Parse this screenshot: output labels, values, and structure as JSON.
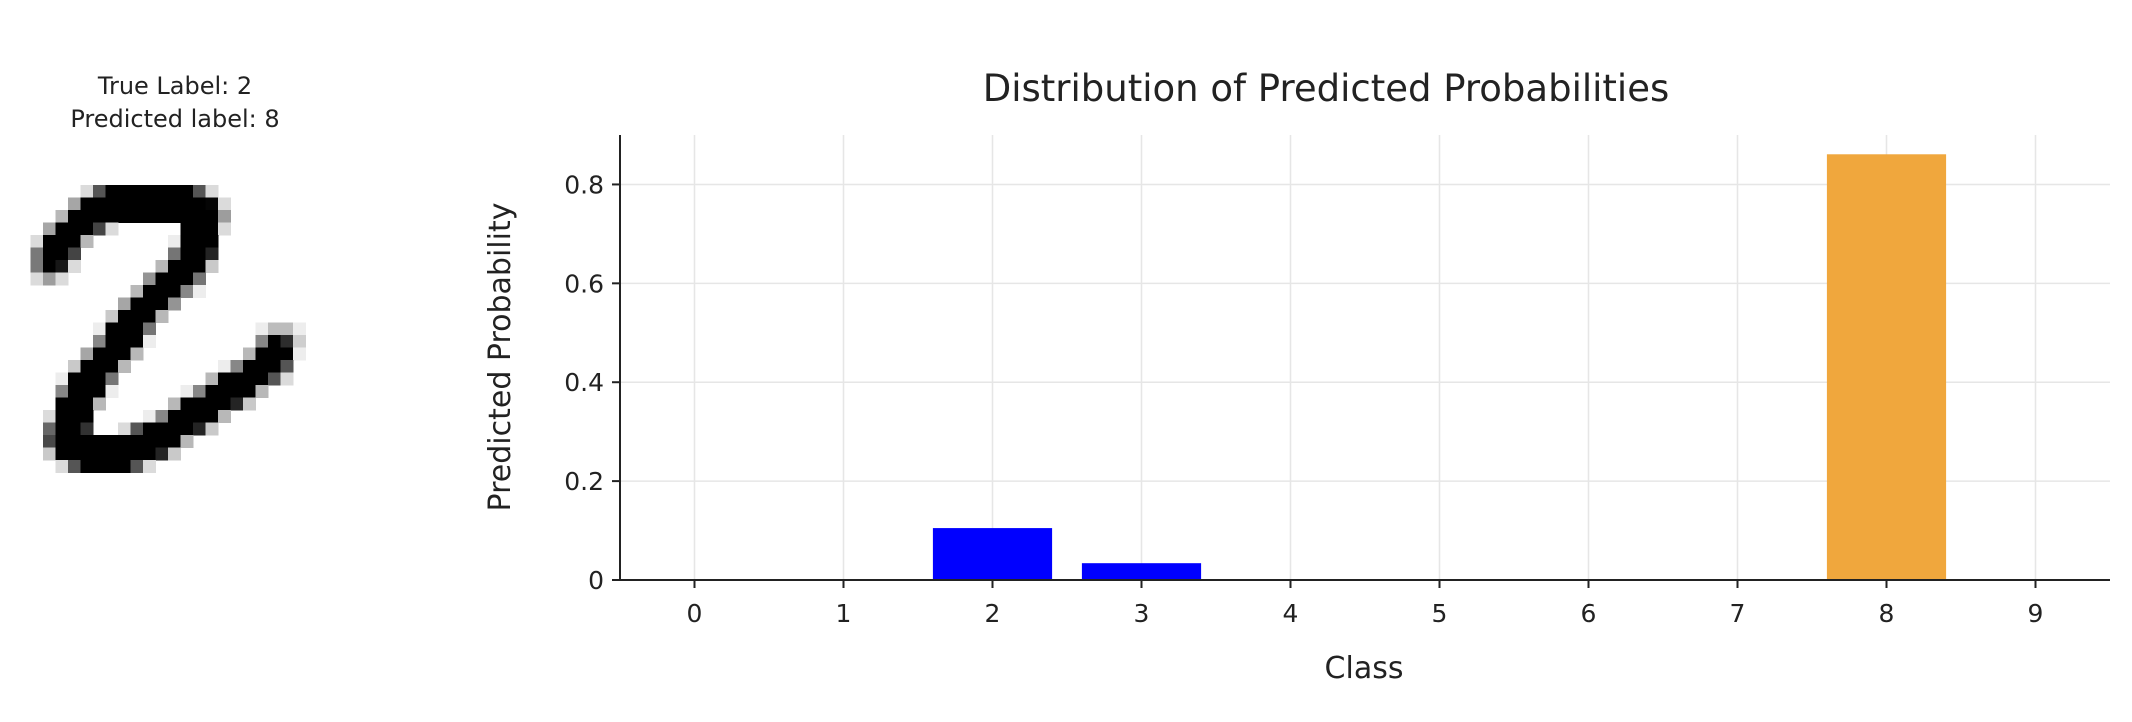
{
  "sample": {
    "true_label_text": "True Label: 2",
    "predicted_label_text": "Predicted label: 8",
    "digit_image": {
      "description_name": "handwritten-digit-2",
      "grid_size": 28
    }
  },
  "chart_data": {
    "type": "bar",
    "title": "Distribution of Predicted Probabilities",
    "xlabel": "Class",
    "ylabel": "Predicted Probability",
    "categories": [
      "0",
      "1",
      "2",
      "3",
      "4",
      "5",
      "6",
      "7",
      "8",
      "9"
    ],
    "values": [
      0.0,
      0.0,
      0.105,
      0.034,
      0.0,
      0.0,
      0.0,
      0.0,
      0.861,
      0.0
    ],
    "bar_colors": [
      "#0000ff",
      "#0000ff",
      "#0000ff",
      "#0000ff",
      "#0000ff",
      "#0000ff",
      "#0000ff",
      "#0000ff",
      "#f0a73d",
      "#0000ff"
    ],
    "ylim": [
      0,
      0.9
    ],
    "yticks": [
      0,
      0.2,
      0.4,
      0.6,
      0.8
    ],
    "ytick_labels": [
      "0",
      "0.2",
      "0.4",
      "0.6",
      "0.8"
    ],
    "grid": true
  }
}
